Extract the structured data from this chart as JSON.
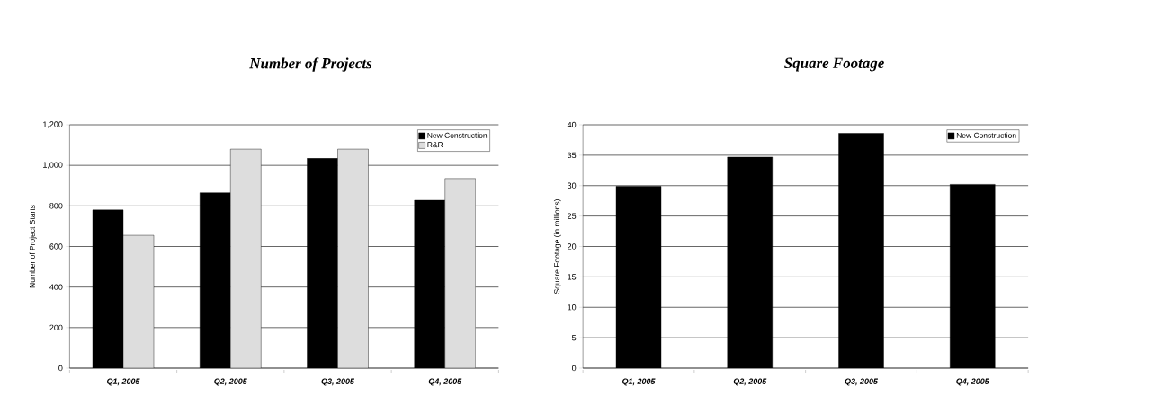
{
  "chart_data": [
    {
      "type": "bar",
      "title": "Number of Projects",
      "ylabel": "Number of Project Starts",
      "categories": [
        "Q1, 2005",
        "Q2, 2005",
        "Q3, 2005",
        "Q4, 2005"
      ],
      "series": [
        {
          "name": "New Construction",
          "color": "#000000",
          "values": [
            780,
            865,
            1035,
            828
          ]
        },
        {
          "name": "R&R",
          "color": "#dddddd",
          "values": [
            655,
            1080,
            1080,
            935
          ]
        }
      ],
      "ylim": [
        0,
        1200
      ],
      "yticks": [
        {
          "value": 0,
          "label": "0"
        },
        {
          "value": 200,
          "label": "200"
        },
        {
          "value": 400,
          "label": "400"
        },
        {
          "value": 600,
          "label": "600"
        },
        {
          "value": 800,
          "label": "800"
        },
        {
          "value": 1000,
          "label": "1,000"
        },
        {
          "value": 1200,
          "label": "1,200"
        }
      ],
      "grid": "y",
      "legend": "top right"
    },
    {
      "type": "bar",
      "title": "Square Footage",
      "ylabel": "Square Footage (in millions)",
      "categories": [
        "Q1, 2005",
        "Q2, 2005",
        "Q3, 2005",
        "Q4, 2005"
      ],
      "series": [
        {
          "name": "New Construction",
          "color": "#000000",
          "values": [
            29.9,
            34.7,
            38.6,
            30.2
          ]
        }
      ],
      "ylim": [
        0,
        40
      ],
      "yticks": [
        0,
        5,
        10,
        15,
        20,
        25,
        30,
        35,
        40
      ],
      "grid": "y",
      "legend": "top right"
    }
  ]
}
